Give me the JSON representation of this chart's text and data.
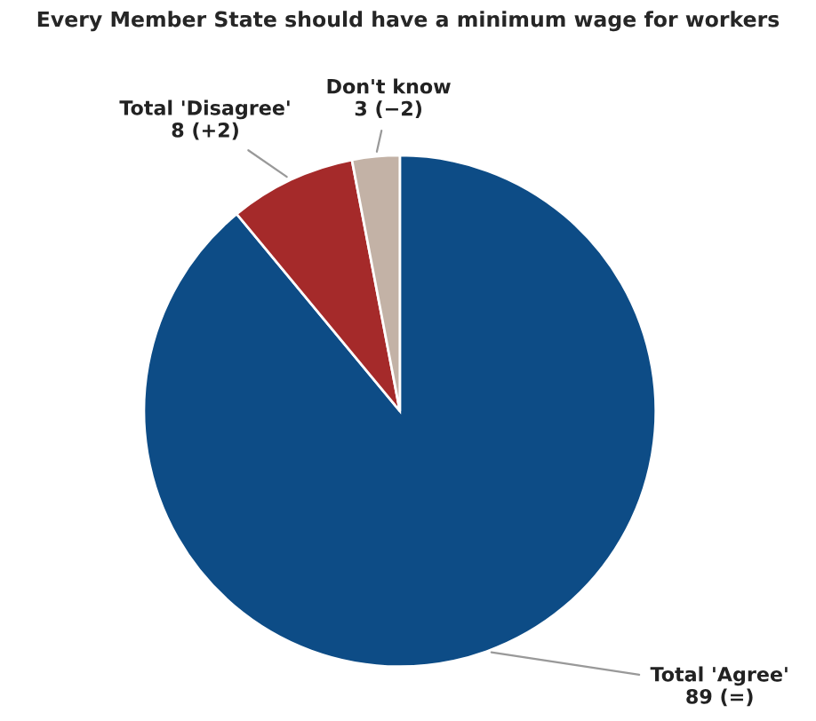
{
  "chart_data": {
    "type": "pie",
    "title": "Every Member State should have a minimum wage for workers",
    "categories": [
      "Total 'Agree'",
      "Total 'Disagree'",
      "Don't know"
    ],
    "values": [
      89,
      8,
      3
    ],
    "value_labels": [
      "89 (=)",
      "8 (+2)",
      "3 (−2)"
    ],
    "colors": [
      "#0d4c86",
      "#a52a2a",
      "#c3b2a6"
    ],
    "legend": false
  }
}
